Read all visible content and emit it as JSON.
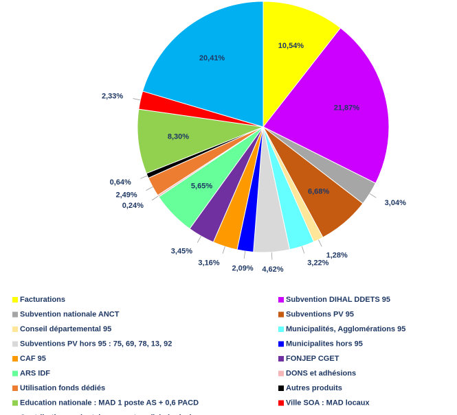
{
  "chart_data": {
    "type": "pie",
    "categories": [
      "Facturations",
      "Subvention DIHAL DDETS 95",
      "Subvention nationale  ANCT",
      "Subventions PV 95",
      "Conseil départemental 95",
      "Municipalités, Agglomérations 95",
      "Subventions PV hors 95 : 75, 69, 78, 13, 92",
      "Municipalites hors 95",
      "CAF 95",
      "FONJEP CGET",
      "ARS IDF",
      "DONS et adhésions",
      "Utilisation fonds dédiés",
      "Autres produits",
      "Education nationale : MAD 1 poste AS + 0,6 PACD",
      "Ville SOA : MAD locaux",
      "Contributions volontaires en nature (bénévoles)"
    ],
    "values": [
      10.54,
      21.87,
      3.04,
      6.68,
      1.28,
      3.22,
      4.62,
      2.09,
      3.16,
      3.45,
      5.65,
      0.24,
      2.49,
      0.64,
      8.3,
      2.33,
      20.41
    ],
    "value_labels": [
      "10,54%",
      "21,87%",
      "3,04%",
      "6,68%",
      "1,28%",
      "3,22%",
      "4,62%",
      "2,09%",
      "3,16%",
      "3,45%",
      "5,65%",
      "0,24%",
      "2,49%",
      "0,64%",
      "8,30%",
      "2,33%",
      "20,41%"
    ],
    "colors": [
      "#ffff00",
      "#cc00ff",
      "#a6a6a6",
      "#c55a11",
      "#ffe699",
      "#66ffff",
      "#d9d9d9",
      "#0000ff",
      "#ff9900",
      "#7030a0",
      "#66ff99",
      "#f4b6b6",
      "#ed7d31",
      "#000000",
      "#92d050",
      "#ff0000",
      "#00b0f0"
    ],
    "legend": "bottom"
  }
}
